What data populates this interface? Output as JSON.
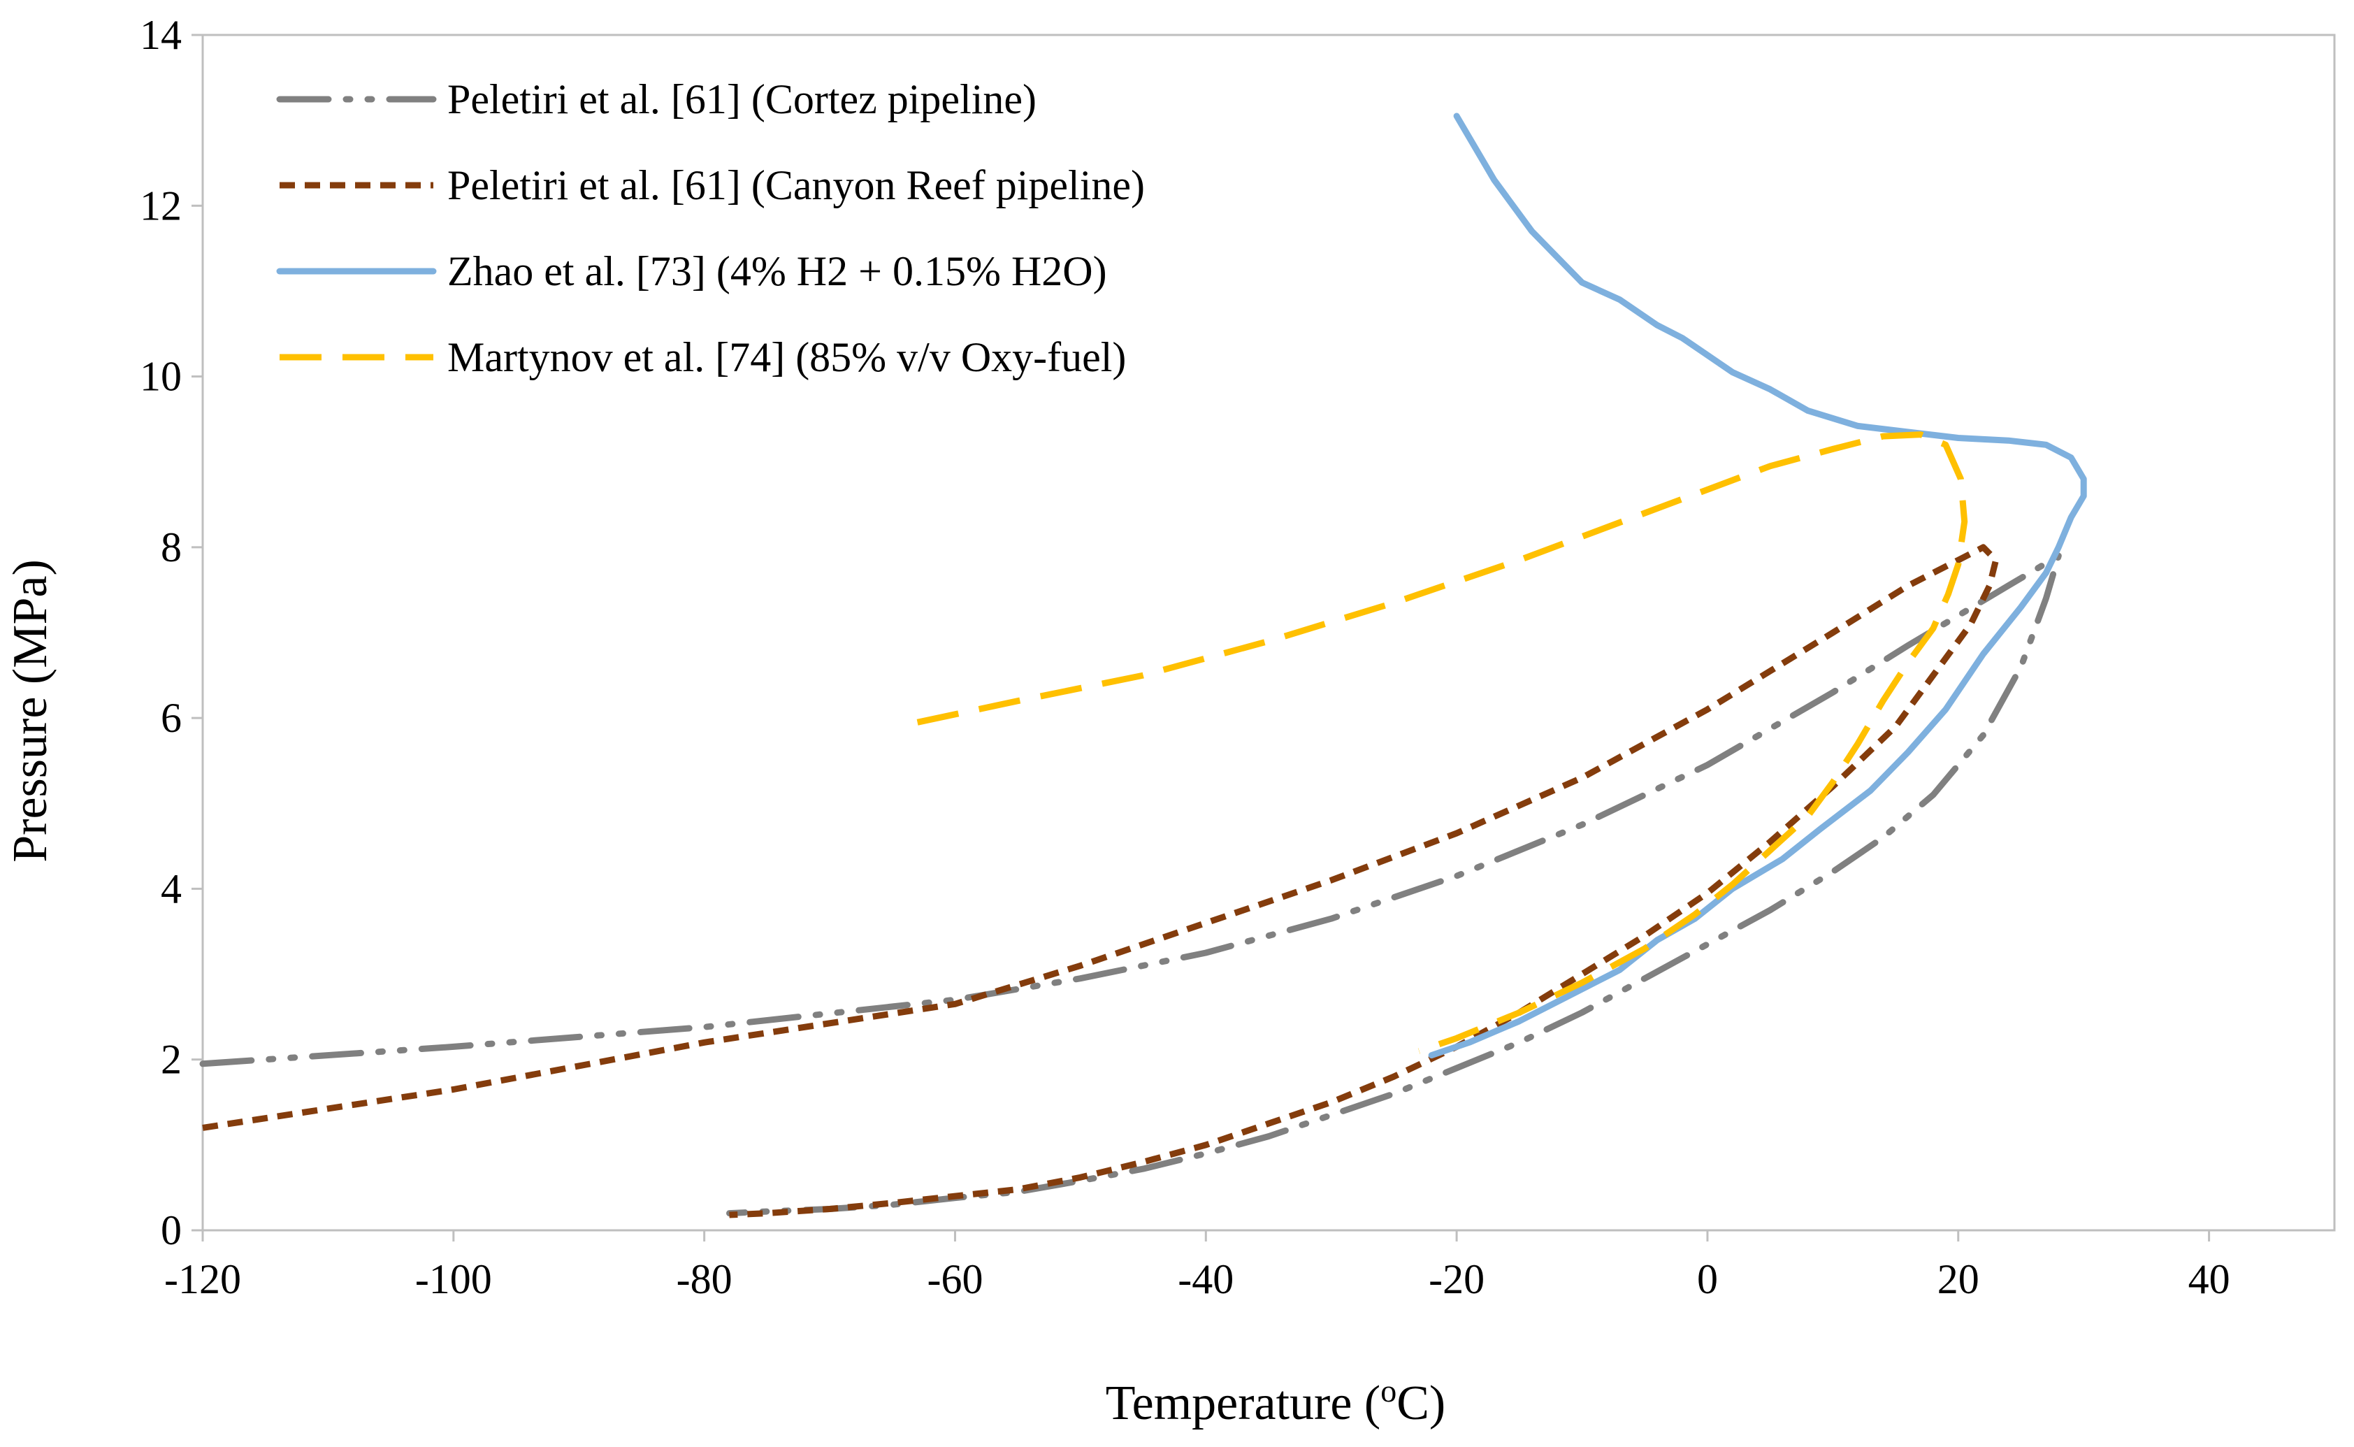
{
  "chart_data": {
    "type": "line",
    "xlabel": "Temperature (",
    "xlabel_sup": "o",
    "xlabel_tail": "C)",
    "ylabel": "Pressure (MPa)",
    "xlim": [
      -120,
      50
    ],
    "ylim": [
      0,
      14
    ],
    "x_ticks": [
      -120,
      -100,
      -80,
      -60,
      -40,
      -20,
      0,
      20,
      40
    ],
    "y_ticks": [
      0,
      2,
      4,
      6,
      8,
      10,
      12,
      14
    ],
    "x_tick_labels": [
      "-120",
      "-100",
      "-80",
      "-60",
      "-40",
      "-20",
      "0",
      "20",
      "40"
    ],
    "y_tick_labels": [
      "0",
      "2",
      "4",
      "6",
      "8",
      "10",
      "12",
      "14"
    ],
    "grid": false,
    "legend_position": "top-left",
    "series": [
      {
        "name": "Peletiri et al. [61] (Cortez pipeline)",
        "color": "#808080",
        "style": "dash-dot-dot",
        "x": [
          -120,
          -100,
          -80,
          -60,
          -50,
          -40,
          -30,
          -20,
          -10,
          0,
          10,
          16,
          20,
          24,
          28,
          27,
          25,
          22,
          18,
          14,
          10,
          5,
          0,
          -5,
          -10,
          -15,
          -20,
          -25,
          -30,
          -35,
          -40,
          -45,
          -50,
          -55,
          -60,
          -65,
          -70,
          -75,
          -78
        ],
        "y": [
          1.95,
          2.15,
          2.38,
          2.7,
          2.95,
          3.25,
          3.65,
          4.15,
          4.75,
          5.45,
          6.3,
          6.85,
          7.2,
          7.55,
          7.9,
          7.4,
          6.6,
          5.8,
          5.1,
          4.6,
          4.2,
          3.75,
          3.35,
          2.95,
          2.55,
          2.2,
          1.9,
          1.6,
          1.35,
          1.1,
          0.9,
          0.72,
          0.58,
          0.45,
          0.38,
          0.3,
          0.25,
          0.22,
          0.2
        ]
      },
      {
        "name": "Peletiri et al. [61] (Canyon Reef pipeline)",
        "color": "#843C0C",
        "style": "short-dash",
        "x": [
          -120,
          -100,
          -80,
          -60,
          -50,
          -40,
          -30,
          -20,
          -10,
          0,
          10,
          16,
          20,
          22,
          23,
          22.5,
          21,
          18,
          15,
          10,
          5,
          0,
          -5,
          -10,
          -15,
          -20,
          -25,
          -30,
          -35,
          -40,
          -45,
          -50,
          -55,
          -60,
          -65,
          -70,
          -75,
          -78
        ],
        "y": [
          1.2,
          1.65,
          2.2,
          2.65,
          3.1,
          3.6,
          4.1,
          4.65,
          5.3,
          6.1,
          7.0,
          7.55,
          7.85,
          8.0,
          7.85,
          7.55,
          7.1,
          6.5,
          5.9,
          5.2,
          4.55,
          3.95,
          3.45,
          3.0,
          2.55,
          2.15,
          1.8,
          1.5,
          1.25,
          1.0,
          0.8,
          0.62,
          0.48,
          0.4,
          0.32,
          0.25,
          0.2,
          0.18
        ]
      },
      {
        "name": "Zhao et al. [73] (4% H2 + 0.15% H2O)",
        "color": "#7EB0DE",
        "style": "solid",
        "x": [
          -20,
          -17,
          -14,
          -10,
          -7,
          -4,
          -2,
          0,
          2,
          5,
          8,
          12,
          16,
          20,
          24,
          27,
          29,
          30,
          30,
          29,
          28,
          27,
          25,
          22,
          19,
          16,
          13,
          9,
          6,
          2,
          -1,
          -4,
          -7,
          -11,
          -15,
          -19,
          -22
        ],
        "y": [
          13.05,
          12.3,
          11.7,
          11.1,
          10.9,
          10.6,
          10.45,
          10.25,
          10.05,
          9.85,
          9.6,
          9.42,
          9.35,
          9.28,
          9.25,
          9.2,
          9.05,
          8.8,
          8.6,
          8.35,
          8.0,
          7.7,
          7.3,
          6.75,
          6.1,
          5.6,
          5.15,
          4.7,
          4.35,
          4.0,
          3.65,
          3.4,
          3.05,
          2.75,
          2.45,
          2.2,
          2.05
        ]
      },
      {
        "name": "Martynov et al. [74] (85% v/v Oxy-fuel)",
        "color": "#FFC000",
        "style": "long-dash",
        "x": [
          -63,
          -55,
          -45,
          -35,
          -25,
          -15,
          -5,
          5,
          10,
          14,
          17,
          19,
          20.2,
          20.5,
          20,
          19.2,
          18,
          16,
          14,
          12,
          10,
          8,
          5,
          2,
          -1,
          -5,
          -10,
          -15,
          -20,
          -23
        ],
        "y": [
          5.95,
          6.2,
          6.5,
          6.9,
          7.35,
          7.85,
          8.4,
          8.95,
          9.15,
          9.3,
          9.32,
          9.2,
          8.8,
          8.3,
          7.8,
          7.45,
          7.05,
          6.65,
          6.2,
          5.7,
          5.25,
          4.85,
          4.45,
          4.05,
          3.7,
          3.3,
          2.9,
          2.55,
          2.25,
          2.1
        ]
      }
    ]
  }
}
